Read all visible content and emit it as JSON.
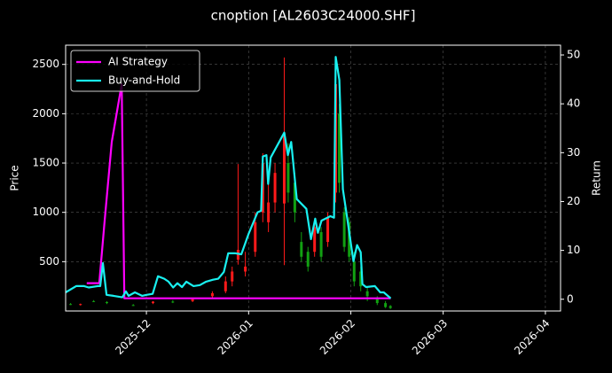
{
  "chart_data": {
    "type": "candlestick",
    "title": "cnoption [AL2603C24000.SHF]",
    "y_label": "Price",
    "y2_label": "Return",
    "xlim": [
      -24.5,
      125.6
    ],
    "xticks": [
      {
        "value": 0,
        "label": "2025-12"
      },
      {
        "value": 31,
        "label": "2026-01"
      },
      {
        "value": 62,
        "label": "2026-02"
      },
      {
        "value": 90,
        "label": "2026-03"
      },
      {
        "value": 121,
        "label": "2026-04"
      }
    ],
    "ylim": [
      0,
      2695
    ],
    "yticks": [
      500,
      1000,
      1500,
      2000,
      2500
    ],
    "y2lim": [
      -2.4,
      52.0
    ],
    "y2ticks": [
      0,
      10,
      20,
      30,
      40,
      50
    ],
    "grid": true,
    "legend": "upper left",
    "up_color": "#ff1a1a",
    "down_color": "#12a012",
    "candles": {
      "x": [
        -23,
        -20,
        -16,
        -12,
        -4,
        2,
        8,
        14,
        20,
        24,
        26,
        27.8,
        30,
        33,
        35.3,
        37,
        39,
        41.8,
        43,
        45,
        47,
        49,
        51,
        53,
        55,
        57.4,
        58.5,
        60,
        61.5,
        63,
        65,
        67,
        70,
        72.5,
        74
      ],
      "open": [
        70,
        65,
        100,
        90,
        60,
        80,
        95,
        100,
        150,
        200,
        300,
        520,
        400,
        600,
        1000,
        900,
        1100,
        1090,
        1500,
        1300,
        700,
        600,
        600,
        800,
        700,
        1200,
        2000,
        1000,
        900,
        500,
        400,
        200,
        120,
        80,
        50
      ],
      "high": [
        80,
        75,
        110,
        100,
        70,
        100,
        110,
        130,
        200,
        350,
        450,
        1490,
        600,
        1000,
        1600,
        1300,
        1500,
        2570,
        1700,
        1400,
        800,
        650,
        900,
        850,
        1000,
        2400,
        2100,
        1050,
        950,
        600,
        450,
        250,
        150,
        100,
        60
      ],
      "low": [
        60,
        55,
        90,
        70,
        50,
        70,
        80,
        90,
        130,
        180,
        250,
        470,
        350,
        550,
        900,
        800,
        1000,
        465,
        1100,
        900,
        500,
        400,
        550,
        500,
        650,
        1100,
        1200,
        600,
        500,
        250,
        200,
        100,
        60,
        30,
        20
      ],
      "close": [
        65,
        70,
        95,
        80,
        55,
        95,
        90,
        120,
        180,
        300,
        400,
        620,
        450,
        900,
        1500,
        1100,
        1400,
        1800,
        1200,
        1000,
        550,
        450,
        850,
        550,
        950,
        2300,
        1300,
        650,
        550,
        300,
        250,
        150,
        80,
        40,
        30
      ]
    },
    "series": [
      {
        "name": "AI Strategy",
        "color": "#ff00ff",
        "axis": "y2",
        "x": [
          -18.1,
          -14.3,
          -12.7,
          -10.5,
          -7.5,
          -6.7,
          74.1
        ],
        "values": [
          3.3,
          3.3,
          15.9,
          32.2,
          44.0,
          0.2,
          0.2
        ]
      },
      {
        "name": "Buy-and-Hold",
        "color": "#19f0f0",
        "axis": "y2",
        "x": [
          -24.5,
          -21.3,
          -18.9,
          -17.5,
          -14.8,
          -14.0,
          -13.2,
          -12.1,
          -10.0,
          -7.3,
          -6.2,
          -5.4,
          -3.5,
          -1.3,
          0,
          1.9,
          3.5,
          5.4,
          6.7,
          8.1,
          9.4,
          10.8,
          12.1,
          14.3,
          16.2,
          18.1,
          20.2,
          21.8,
          23.5,
          24.8,
          27.0,
          28.8,
          31.0,
          33.7,
          34.8,
          35.3,
          36.4,
          36.9,
          37.7,
          41.8,
          42.9,
          43.9,
          45.6,
          48.5,
          49.9,
          51.2,
          52.0,
          53.1,
          55.8,
          56.9,
          57.4,
          58.5,
          59.6,
          60.6,
          62.8,
          63.9,
          65.0,
          65.5,
          66.6,
          69.3,
          70.9,
          72.0,
          74.1
        ],
        "values": [
          1.4,
          2.7,
          2.7,
          2.4,
          2.7,
          2.7,
          7.4,
          0.9,
          0.7,
          0.4,
          1.6,
          0.7,
          1.4,
          0.7,
          0.9,
          1.1,
          4.7,
          4.2,
          3.6,
          2.4,
          3.3,
          2.5,
          3.6,
          2.7,
          2.9,
          3.6,
          4.0,
          4.2,
          5.6,
          9.4,
          9.4,
          9.2,
          13.4,
          17.8,
          18.1,
          29.2,
          29.5,
          23.6,
          29.0,
          34.1,
          29.5,
          32.2,
          20.5,
          18.5,
          12.3,
          16.5,
          13.6,
          16.1,
          17.0,
          16.7,
          49.6,
          44.9,
          22.5,
          17.9,
          7.8,
          11.1,
          9.6,
          3.1,
          2.5,
          2.7,
          1.4,
          1.4,
          0.2
        ]
      }
    ]
  }
}
